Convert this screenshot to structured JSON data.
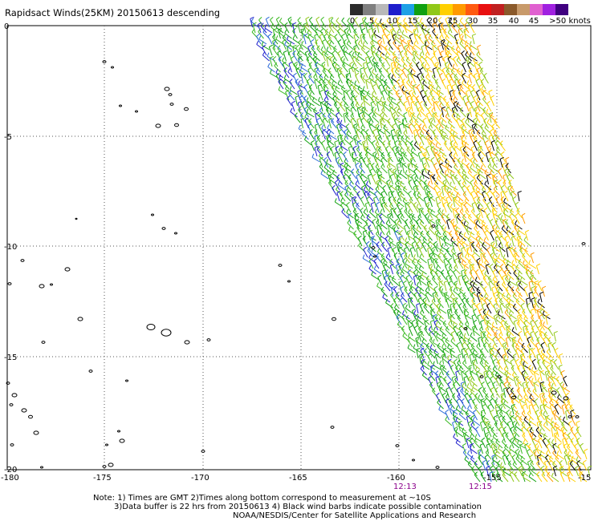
{
  "title": "Rapidsact Winds(25KM) 20150613 descending",
  "legend": {
    "colors": [
      "#2b2b2b",
      "#7f7f7f",
      "#b8b8b8",
      "#1e1ecc",
      "#1ea0e6",
      "#10a010",
      "#90c818",
      "#ffd000",
      "#ff9a00",
      "#ff5a10",
      "#e81010",
      "#c02020",
      "#8b5a2b",
      "#c89a6a",
      "#e060d0",
      "#a020e0",
      "#400080"
    ],
    "labels": [
      "0",
      "5",
      "10",
      "15",
      "20",
      "25",
      "30",
      "35",
      "40",
      "45",
      ">50 knots"
    ]
  },
  "axes": {
    "longitude_ticks": [
      "-180",
      "-175",
      "-170",
      "-165",
      "-160",
      "-155",
      "-15"
    ],
    "latitude_ticks": [
      "0",
      "-5",
      "-10",
      "-15",
      "-20"
    ]
  },
  "times": [
    "12:13",
    "12:15"
  ],
  "notes": {
    "line1": "Note: 1) Times are GMT 2)Times along bottom correspond to measurement at ~10S",
    "line2": "3)Data buffer is 22 hrs from 20150613 4) Black wind barbs indicate possible contamination",
    "line3": "NOAA/NESDIS/Center for Satellite Applications and Research"
  }
}
